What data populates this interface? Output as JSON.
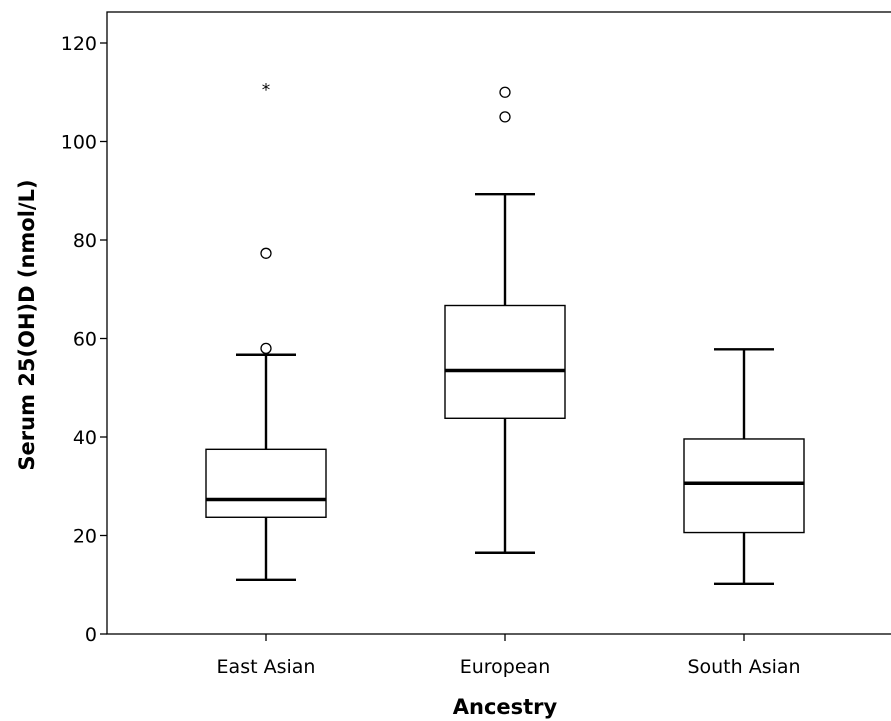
{
  "chart_data": {
    "type": "box",
    "xlabel": "Ancestry",
    "ylabel": "Serum 25(OH)D (nmol/L)",
    "ylim": [
      0,
      120
    ],
    "yticks": [
      0,
      20,
      40,
      60,
      80,
      100,
      120
    ],
    "grid": false,
    "categories": [
      "East Asian",
      "European",
      "South Asian"
    ],
    "boxes": [
      {
        "category": "East Asian",
        "whisker_low": 11,
        "q1": 23.7,
        "median": 27.3,
        "q3": 37.5,
        "whisker_high": 56.7,
        "outliers": [
          58.0,
          77.3
        ],
        "extremes": [
          111
        ]
      },
      {
        "category": "European",
        "whisker_low": 16.5,
        "q1": 43.8,
        "median": 53.5,
        "q3": 66.7,
        "whisker_high": 89.3,
        "outliers": [
          105,
          110
        ],
        "extremes": []
      },
      {
        "category": "South Asian",
        "whisker_low": 10.2,
        "q1": 20.6,
        "median": 30.6,
        "q3": 39.6,
        "whisker_high": 57.8,
        "outliers": [],
        "extremes": []
      }
    ]
  }
}
